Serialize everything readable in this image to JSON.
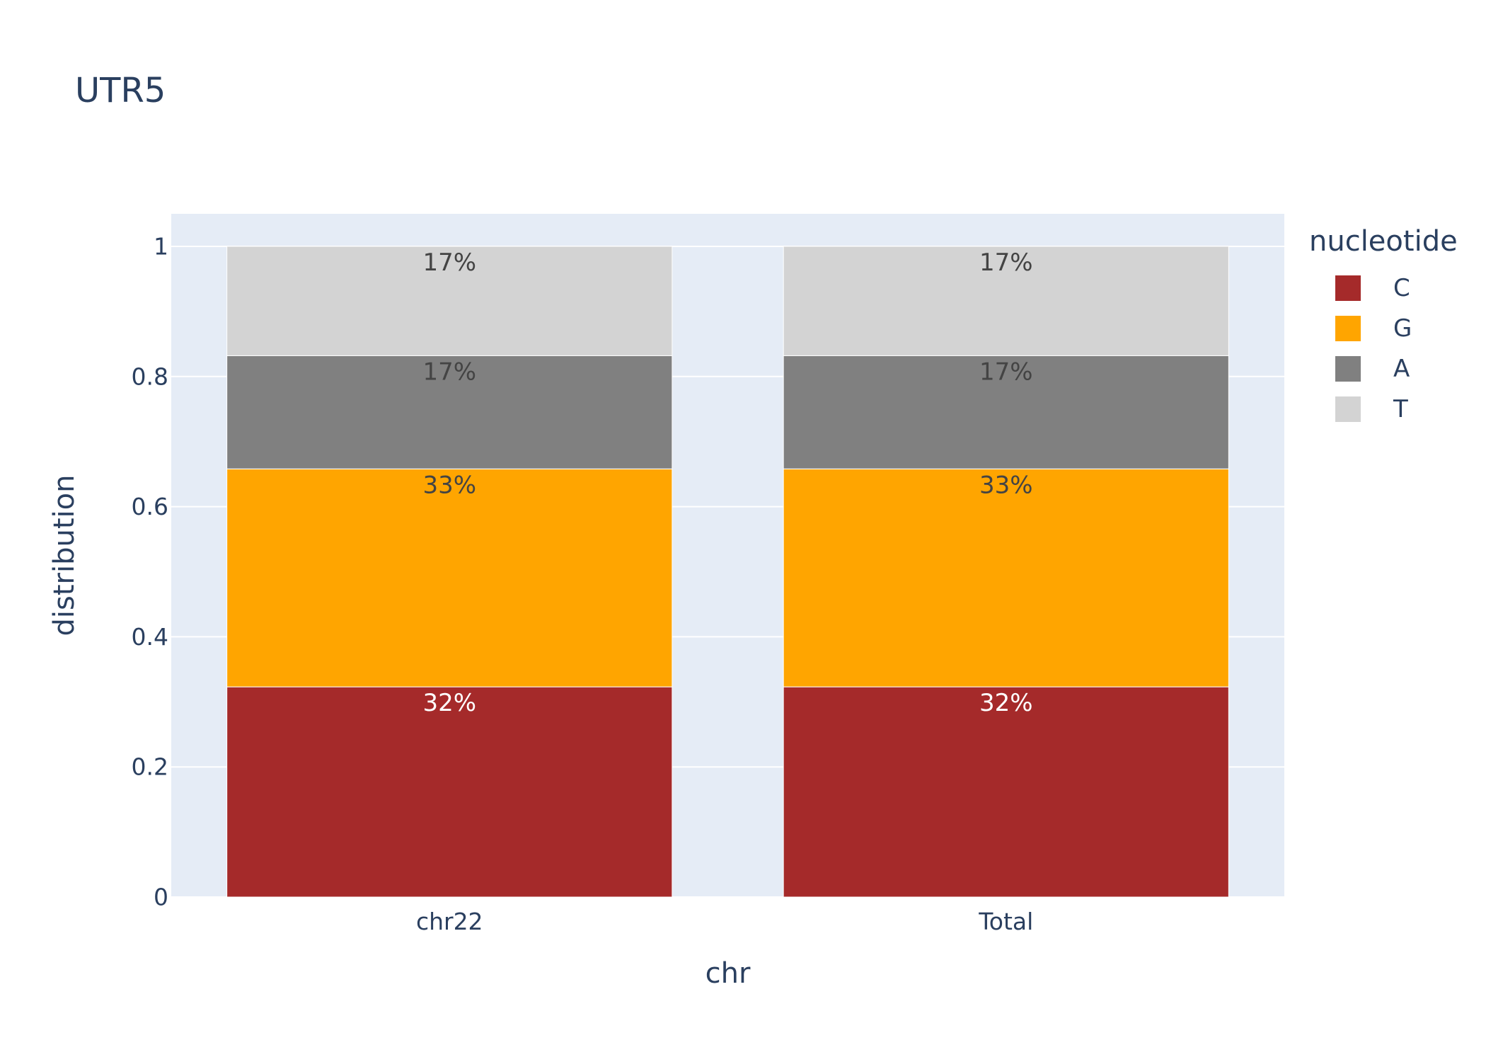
{
  "chart_data": {
    "type": "bar",
    "stacked": true,
    "title": "UTR5",
    "xlabel": "chr",
    "ylabel": "distribution",
    "categories": [
      "chr22",
      "Total"
    ],
    "ylim": [
      0,
      1.05
    ],
    "yticks": [
      0,
      0.2,
      0.4,
      0.6,
      0.8,
      1
    ],
    "ytick_labels": [
      "0",
      "0.2",
      "0.4",
      "0.6",
      "0.8",
      "1"
    ],
    "grid": true,
    "legend_title": "nucleotide",
    "legend_position": "top-right",
    "series": [
      {
        "name": "C",
        "color": "#a52a2a",
        "values": [
          0.323,
          0.323
        ],
        "labels": [
          "32%",
          "32%"
        ],
        "label_color": "#ffffff"
      },
      {
        "name": "G",
        "color": "#ffa500",
        "values": [
          0.335,
          0.335
        ],
        "labels": [
          "33%",
          "33%"
        ],
        "label_color": "#444444"
      },
      {
        "name": "A",
        "color": "#808080",
        "values": [
          0.174,
          0.174
        ],
        "labels": [
          "17%",
          "17%"
        ],
        "label_color": "#444444"
      },
      {
        "name": "T",
        "color": "#d3d3d3",
        "values": [
          0.168,
          0.168
        ],
        "labels": [
          "17%",
          "17%"
        ],
        "label_color": "#444444"
      }
    ]
  }
}
